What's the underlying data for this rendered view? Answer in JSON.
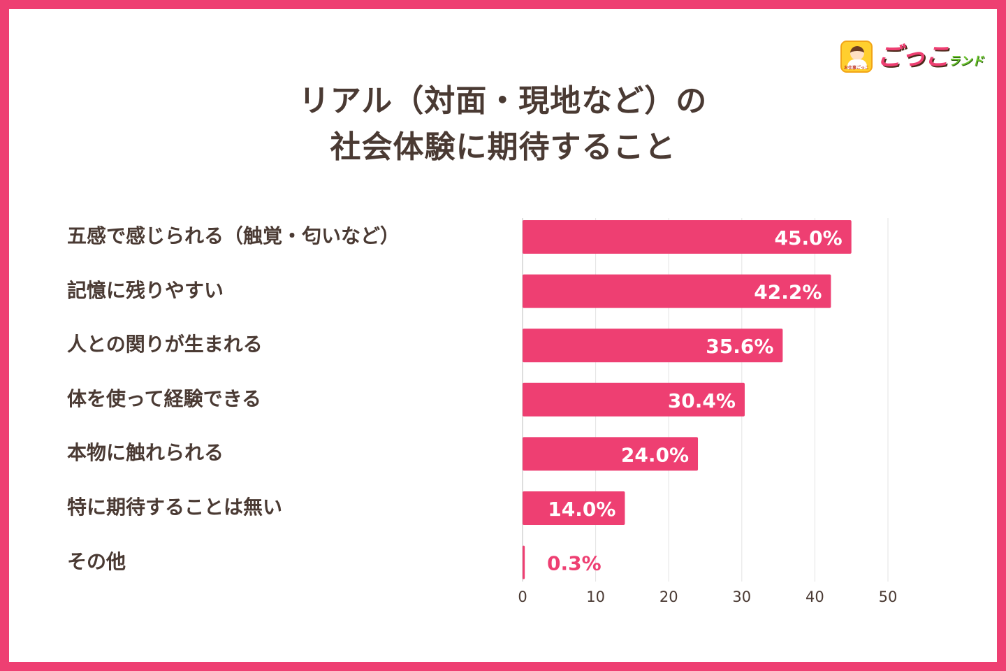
{
  "title_line1": "リアル（対面・現地など）の",
  "title_line2": "社会体験に期待すること",
  "logo": {
    "icon_caption": "お仕事ごっこ",
    "name": "ごっこ",
    "name_suffix": "ランド"
  },
  "colors": {
    "accent": "#ee3f72",
    "text": "#4a3a33",
    "grid": "#e3e3e3"
  },
  "chart_data": {
    "type": "bar",
    "orientation": "horizontal",
    "title": "リアル（対面・現地など）の社会体験に期待すること",
    "categories": [
      "五感で感じられる（触覚・匂いなど）",
      "記憶に残りやすい",
      "人との関りが生まれる",
      "体を使って経験できる",
      "本物に触れられる",
      "特に期待することは無い",
      "その他"
    ],
    "values": [
      45.0,
      42.2,
      35.6,
      30.4,
      24.0,
      14.0,
      0.3
    ],
    "value_labels": [
      "45.0%",
      "42.2%",
      "35.6%",
      "30.4%",
      "24.0%",
      "14.0%",
      "0.3%"
    ],
    "xlim": [
      0,
      50
    ],
    "xticks": [
      0,
      10,
      20,
      30,
      40,
      50
    ],
    "xtick_labels": [
      "0",
      "10",
      "20",
      "30",
      "40",
      "50"
    ],
    "grid": true,
    "legend": "none"
  }
}
